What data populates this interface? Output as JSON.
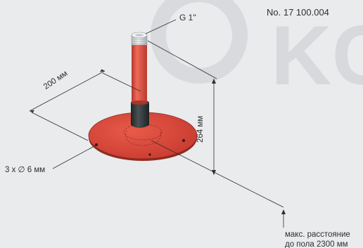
{
  "labels": {
    "product_number": "No. 17 100.004",
    "thread_size": "G 1\"",
    "plate_width": "200 мм",
    "height": "264 мм",
    "mounting_holes": "3 x ∅ 6 мм",
    "note_line1": "макс. расстояние",
    "note_line2": "до пола 2300 мм"
  },
  "watermark": {
    "glyph_text": "KC",
    "color": "#d7d9dc"
  },
  "colors": {
    "background": "#e9ebed",
    "flange_red": "#d9463a",
    "tube_red": "#dc5040",
    "collar_dark": "#2f3437",
    "thread_grey": "#cfd3d6",
    "dimension_line": "#2f2f2f"
  }
}
